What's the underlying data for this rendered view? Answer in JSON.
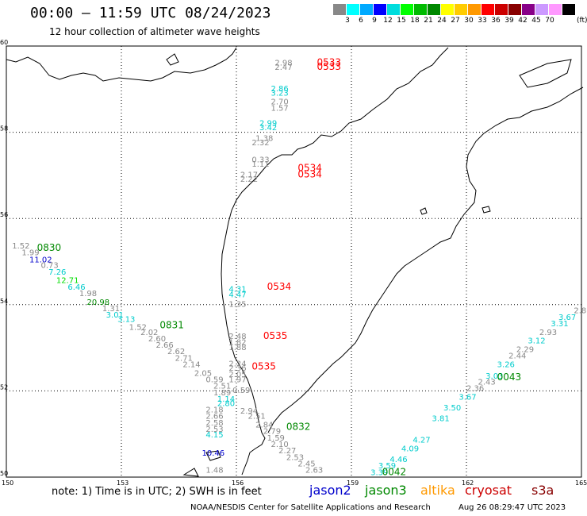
{
  "header": {
    "title": "00:00 – 11:59 UTC 08/24/2023",
    "subtitle": "12 hour collection of altimeter wave heights"
  },
  "legend": {
    "colors": [
      "#888888",
      "#00ffff",
      "#00aaff",
      "#0000ff",
      "#00dddd",
      "#00ff00",
      "#00bb00",
      "#008800",
      "#ffff00",
      "#ffcc00",
      "#ff9900",
      "#ff0000",
      "#cc0000",
      "#880000",
      "#880088",
      "#cc99ff",
      "#ff99ff",
      "#000000"
    ],
    "levels": [
      "3",
      "6",
      "9",
      "12",
      "15",
      "18",
      "21",
      "24",
      "27",
      "30",
      "33",
      "36",
      "39",
      "42",
      "45",
      "70"
    ],
    "unit": "(ft)"
  },
  "axes": {
    "lon_labels": [
      "150",
      "153",
      "156",
      "159",
      "162",
      "165"
    ],
    "lat_labels": [
      "60",
      "58",
      "56",
      "54",
      "52",
      "50"
    ]
  },
  "footer": {
    "note": "note: 1) Time is in UTC; 2) SWH is in feet",
    "satellites": [
      {
        "name": "jason2",
        "color": "#0000cc"
      },
      {
        "name": "jason3",
        "color": "#008800"
      },
      {
        "name": "altika",
        "color": "#ff9900"
      },
      {
        "name": "cryosat",
        "color": "#cc0000"
      },
      {
        "name": "s3a",
        "color": "#880000"
      }
    ],
    "credit": "NOAA/NESDIS Center for Satellite Applications and Research",
    "timestamp": "Aug 26 08:29:47 UTC 2023"
  },
  "map_data": {
    "times": [
      {
        "text": "0533",
        "lon": 158.1,
        "lat": 59.55,
        "color": "#ff0000"
      },
      {
        "text": "0533",
        "lon": 158.1,
        "lat": 59.45,
        "color": "#ff0000"
      },
      {
        "text": "0534",
        "lon": 157.6,
        "lat": 57.1,
        "color": "#ff0000"
      },
      {
        "text": "0534",
        "lon": 157.6,
        "lat": 56.95,
        "color": "#ff0000"
      },
      {
        "text": "0534",
        "lon": 156.8,
        "lat": 54.35,
        "color": "#ff0000"
      },
      {
        "text": "0535",
        "lon": 156.7,
        "lat": 53.2,
        "color": "#ff0000"
      },
      {
        "text": "0535",
        "lon": 156.4,
        "lat": 52.5,
        "color": "#ff0000"
      },
      {
        "text": "0830",
        "lon": 150.8,
        "lat": 55.25,
        "color": "#008800"
      },
      {
        "text": "0831",
        "lon": 154.0,
        "lat": 53.45,
        "color": "#008800"
      },
      {
        "text": "0832",
        "lon": 157.3,
        "lat": 51.1,
        "color": "#008800"
      },
      {
        "text": "0043",
        "lon": 162.8,
        "lat": 52.25,
        "color": "#008800"
      },
      {
        "text": "0042",
        "lon": 159.8,
        "lat": 50.05,
        "color": "#008800"
      }
    ],
    "swh": [
      {
        "text": "2.98",
        "lon": 157.0,
        "lat": 59.55,
        "color": "#888888"
      },
      {
        "text": "2.47",
        "lon": 157.0,
        "lat": 59.45,
        "color": "#888888"
      },
      {
        "text": "2.86",
        "lon": 156.9,
        "lat": 58.95,
        "color": "#00cccc"
      },
      {
        "text": "3.23",
        "lon": 156.9,
        "lat": 58.85,
        "color": "#00cccc"
      },
      {
        "text": "2.70",
        "lon": 156.9,
        "lat": 58.65,
        "color": "#888888"
      },
      {
        "text": "1.57",
        "lon": 156.9,
        "lat": 58.5,
        "color": "#888888"
      },
      {
        "text": "2.99",
        "lon": 156.6,
        "lat": 58.15,
        "color": "#00cccc"
      },
      {
        "text": "3.42",
        "lon": 156.6,
        "lat": 58.05,
        "color": "#00cccc"
      },
      {
        "text": "1.38",
        "lon": 156.5,
        "lat": 57.8,
        "color": "#888888"
      },
      {
        "text": "2.32",
        "lon": 156.4,
        "lat": 57.7,
        "color": "#888888"
      },
      {
        "text": "0.33",
        "lon": 156.4,
        "lat": 57.3,
        "color": "#888888"
      },
      {
        "text": "1.11",
        "lon": 156.4,
        "lat": 57.2,
        "color": "#888888"
      },
      {
        "text": "2.17",
        "lon": 156.1,
        "lat": 56.95,
        "color": "#888888"
      },
      {
        "text": "2.22",
        "lon": 156.1,
        "lat": 56.85,
        "color": "#888888"
      },
      {
        "text": "1.52",
        "lon": 150.15,
        "lat": 55.3,
        "color": "#888888"
      },
      {
        "text": "1.99",
        "lon": 150.4,
        "lat": 55.15,
        "color": "#888888"
      },
      {
        "text": "11.02",
        "lon": 150.6,
        "lat": 54.98,
        "color": "#0000cc"
      },
      {
        "text": "0.73",
        "lon": 150.9,
        "lat": 54.85,
        "color": "#888888"
      },
      {
        "text": "7.26",
        "lon": 151.1,
        "lat": 54.7,
        "color": "#00cccc"
      },
      {
        "text": "12.71",
        "lon": 151.3,
        "lat": 54.5,
        "color": "#00dd00"
      },
      {
        "text": "6.46",
        "lon": 151.6,
        "lat": 54.35,
        "color": "#00cccc"
      },
      {
        "text": "1.98",
        "lon": 151.9,
        "lat": 54.2,
        "color": "#888888"
      },
      {
        "text": "20.98",
        "lon": 152.1,
        "lat": 54.0,
        "color": "#008800"
      },
      {
        "text": "1.31",
        "lon": 152.5,
        "lat": 53.85,
        "color": "#888888"
      },
      {
        "text": "3.01",
        "lon": 152.6,
        "lat": 53.7,
        "color": "#00cccc"
      },
      {
        "text": "3.13",
        "lon": 152.9,
        "lat": 53.6,
        "color": "#00cccc"
      },
      {
        "text": "1.52",
        "lon": 153.2,
        "lat": 53.42,
        "color": "#888888"
      },
      {
        "text": "2.02",
        "lon": 153.5,
        "lat": 53.3,
        "color": "#888888"
      },
      {
        "text": "2.60",
        "lon": 153.7,
        "lat": 53.15,
        "color": "#888888"
      },
      {
        "text": "2.66",
        "lon": 153.9,
        "lat": 53.0,
        "color": "#888888"
      },
      {
        "text": "2.62",
        "lon": 154.2,
        "lat": 52.85,
        "color": "#888888"
      },
      {
        "text": "2.71",
        "lon": 154.4,
        "lat": 52.7,
        "color": "#888888"
      },
      {
        "text": "2.14",
        "lon": 154.6,
        "lat": 52.55,
        "color": "#888888"
      },
      {
        "text": "2.05",
        "lon": 154.9,
        "lat": 52.35,
        "color": "#888888"
      },
      {
        "text": "0.59",
        "lon": 155.2,
        "lat": 52.2,
        "color": "#888888"
      },
      {
        "text": "2.51",
        "lon": 155.4,
        "lat": 52.05,
        "color": "#888888"
      },
      {
        "text": "1.89",
        "lon": 155.4,
        "lat": 51.9,
        "color": "#888888"
      },
      {
        "text": "1.14",
        "lon": 155.5,
        "lat": 51.75,
        "color": "#00cccc"
      },
      {
        "text": "2.80",
        "lon": 155.5,
        "lat": 51.65,
        "color": "#00cccc"
      },
      {
        "text": "2.18",
        "lon": 155.2,
        "lat": 51.5,
        "color": "#888888"
      },
      {
        "text": "2.66",
        "lon": 155.2,
        "lat": 51.35,
        "color": "#888888"
      },
      {
        "text": "2.58",
        "lon": 155.2,
        "lat": 51.2,
        "color": "#888888"
      },
      {
        "text": "2.53",
        "lon": 155.2,
        "lat": 51.05,
        "color": "#888888"
      },
      {
        "text": "4.15",
        "lon": 155.2,
        "lat": 50.92,
        "color": "#00cccc"
      },
      {
        "text": "10.46",
        "lon": 155.1,
        "lat": 50.5,
        "color": "#0000cc"
      },
      {
        "text": "1.48",
        "lon": 155.2,
        "lat": 50.1,
        "color": "#888888"
      },
      {
        "text": "4.31",
        "lon": 155.8,
        "lat": 54.3,
        "color": "#00cccc"
      },
      {
        "text": "4.47",
        "lon": 155.8,
        "lat": 54.17,
        "color": "#00cccc"
      },
      {
        "text": "1.35",
        "lon": 155.8,
        "lat": 53.95,
        "color": "#888888"
      },
      {
        "text": "2.48",
        "lon": 155.8,
        "lat": 53.2,
        "color": "#888888"
      },
      {
        "text": "1.82",
        "lon": 155.8,
        "lat": 53.07,
        "color": "#888888"
      },
      {
        "text": "1.88",
        "lon": 155.8,
        "lat": 52.95,
        "color": "#888888"
      },
      {
        "text": "2.24",
        "lon": 155.8,
        "lat": 52.57,
        "color": "#888888"
      },
      {
        "text": "2.36",
        "lon": 155.8,
        "lat": 52.47,
        "color": "#888888"
      },
      {
        "text": "2.05",
        "lon": 155.8,
        "lat": 52.32,
        "color": "#888888"
      },
      {
        "text": "1.97",
        "lon": 155.8,
        "lat": 52.2,
        "color": "#888888"
      },
      {
        "text": "0.59",
        "lon": 155.9,
        "lat": 51.95,
        "color": "#888888"
      },
      {
        "text": "2.94",
        "lon": 156.1,
        "lat": 51.47,
        "color": "#888888"
      },
      {
        "text": "2.51",
        "lon": 156.3,
        "lat": 51.35,
        "color": "#888888"
      },
      {
        "text": "2.84",
        "lon": 156.5,
        "lat": 51.15,
        "color": "#888888"
      },
      {
        "text": "2.79",
        "lon": 156.7,
        "lat": 51.0,
        "color": "#888888"
      },
      {
        "text": "1.59",
        "lon": 156.8,
        "lat": 50.85,
        "color": "#888888"
      },
      {
        "text": "2.10",
        "lon": 156.9,
        "lat": 50.7,
        "color": "#888888"
      },
      {
        "text": "2.27",
        "lon": 157.1,
        "lat": 50.55,
        "color": "#888888"
      },
      {
        "text": "2.53",
        "lon": 157.3,
        "lat": 50.4,
        "color": "#888888"
      },
      {
        "text": "2.45",
        "lon": 157.6,
        "lat": 50.25,
        "color": "#888888"
      },
      {
        "text": "2.63",
        "lon": 157.8,
        "lat": 50.1,
        "color": "#888888"
      },
      {
        "text": "3.39",
        "lon": 159.5,
        "lat": 50.05,
        "color": "#00cccc"
      },
      {
        "text": "3.59",
        "lon": 159.7,
        "lat": 50.2,
        "color": "#00cccc"
      },
      {
        "text": "4.46",
        "lon": 160.0,
        "lat": 50.35,
        "color": "#00cccc"
      },
      {
        "text": "4.09",
        "lon": 160.3,
        "lat": 50.6,
        "color": "#00cccc"
      },
      {
        "text": "4.27",
        "lon": 160.6,
        "lat": 50.8,
        "color": "#00cccc"
      },
      {
        "text": "3.81",
        "lon": 161.1,
        "lat": 51.3,
        "color": "#00cccc"
      },
      {
        "text": "3.50",
        "lon": 161.4,
        "lat": 51.55,
        "color": "#00cccc"
      },
      {
        "text": "3.67",
        "lon": 161.8,
        "lat": 51.8,
        "color": "#00cccc"
      },
      {
        "text": "2.36",
        "lon": 162.0,
        "lat": 52.0,
        "color": "#888888"
      },
      {
        "text": "2.43",
        "lon": 162.3,
        "lat": 52.15,
        "color": "#888888"
      },
      {
        "text": "3.03",
        "lon": 162.5,
        "lat": 52.28,
        "color": "#00cccc"
      },
      {
        "text": "3.26",
        "lon": 162.8,
        "lat": 52.55,
        "color": "#00cccc"
      },
      {
        "text": "2.44",
        "lon": 163.1,
        "lat": 52.75,
        "color": "#888888"
      },
      {
        "text": "2.29",
        "lon": 163.3,
        "lat": 52.9,
        "color": "#888888"
      },
      {
        "text": "3.12",
        "lon": 163.6,
        "lat": 53.1,
        "color": "#00cccc"
      },
      {
        "text": "2.93",
        "lon": 163.9,
        "lat": 53.3,
        "color": "#888888"
      },
      {
        "text": "3.31",
        "lon": 164.2,
        "lat": 53.5,
        "color": "#00cccc"
      },
      {
        "text": "3.67",
        "lon": 164.4,
        "lat": 53.65,
        "color": "#00cccc"
      },
      {
        "text": "2.8",
        "lon": 164.8,
        "lat": 53.8,
        "color": "#888888"
      }
    ]
  }
}
